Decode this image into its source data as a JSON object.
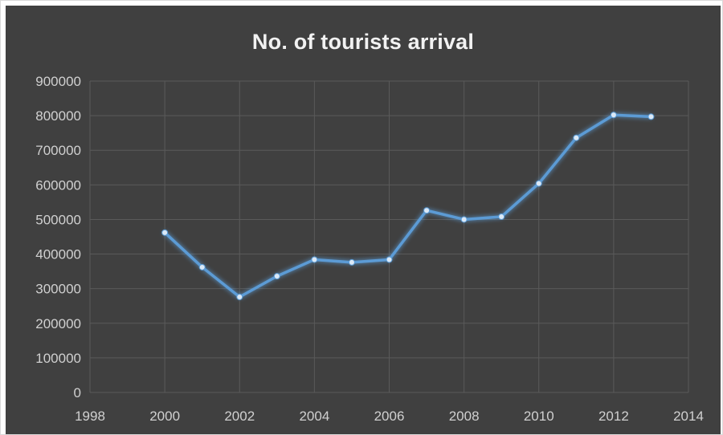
{
  "chart_data": {
    "type": "scatter",
    "title": "No. of tourists arrival",
    "xlabel": "",
    "ylabel": "",
    "xlim": [
      1998,
      2014
    ],
    "ylim": [
      0,
      900000
    ],
    "x_ticks": [
      "1998",
      "2000",
      "2002",
      "2004",
      "2006",
      "2008",
      "2010",
      "2012",
      "2014"
    ],
    "y_ticks": [
      "0",
      "100000",
      "200000",
      "300000",
      "400000",
      "500000",
      "600000",
      "700000",
      "800000",
      "900000"
    ],
    "grid": true,
    "legend": "none",
    "line_color": "#5b9bd5",
    "series": [
      {
        "x": [
          2000,
          2001,
          2002,
          2003,
          2004,
          2005,
          2006,
          2007,
          2008,
          2009,
          2010,
          2011,
          2012,
          2013
        ],
        "y": [
          462000,
          362000,
          276000,
          336000,
          384000,
          376000,
          384000,
          526000,
          500000,
          508000,
          604000,
          736000,
          802000,
          797000
        ]
      }
    ]
  }
}
